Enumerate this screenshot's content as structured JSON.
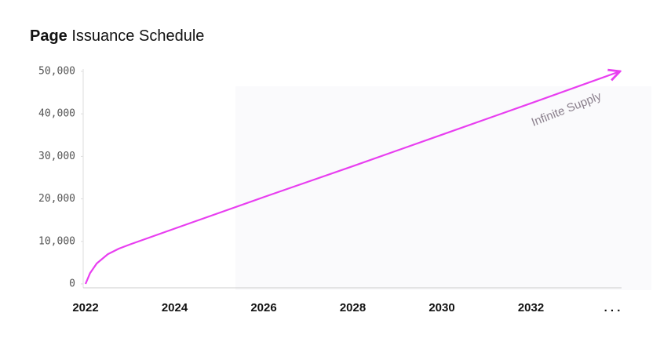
{
  "chart_data": {
    "type": "line",
    "title_emphasis": "Page",
    "title": "Issuance Schedule",
    "annotation": "Infinite Supply",
    "x": [
      2022,
      2022.1,
      2022.25,
      2022.5,
      2022.75,
      2023,
      2024,
      2026,
      2028,
      2030,
      2032,
      2034
    ],
    "series": [
      {
        "color": "#e83ef0",
        "values": [
          0,
          2500,
          4800,
          7000,
          8300,
          9300,
          13000,
          20400,
          27700,
          35100,
          42500,
          50000
        ]
      }
    ],
    "xlim": [
      2022,
      2034
    ],
    "xticks": [
      2022,
      2024,
      2026,
      2028,
      2030,
      2032,
      {
        "value": 2034,
        "label": ". . ."
      }
    ],
    "ylim": [
      0,
      50000
    ],
    "yticks": [
      0,
      {
        "value": 10000,
        "label": "10,000"
      },
      {
        "value": 20000,
        "label": "20,000"
      },
      {
        "value": 30000,
        "label": "30,000"
      },
      {
        "value": 40000,
        "label": "40,000"
      },
      {
        "value": 50000,
        "label": "50,000"
      }
    ],
    "grid": false
  }
}
